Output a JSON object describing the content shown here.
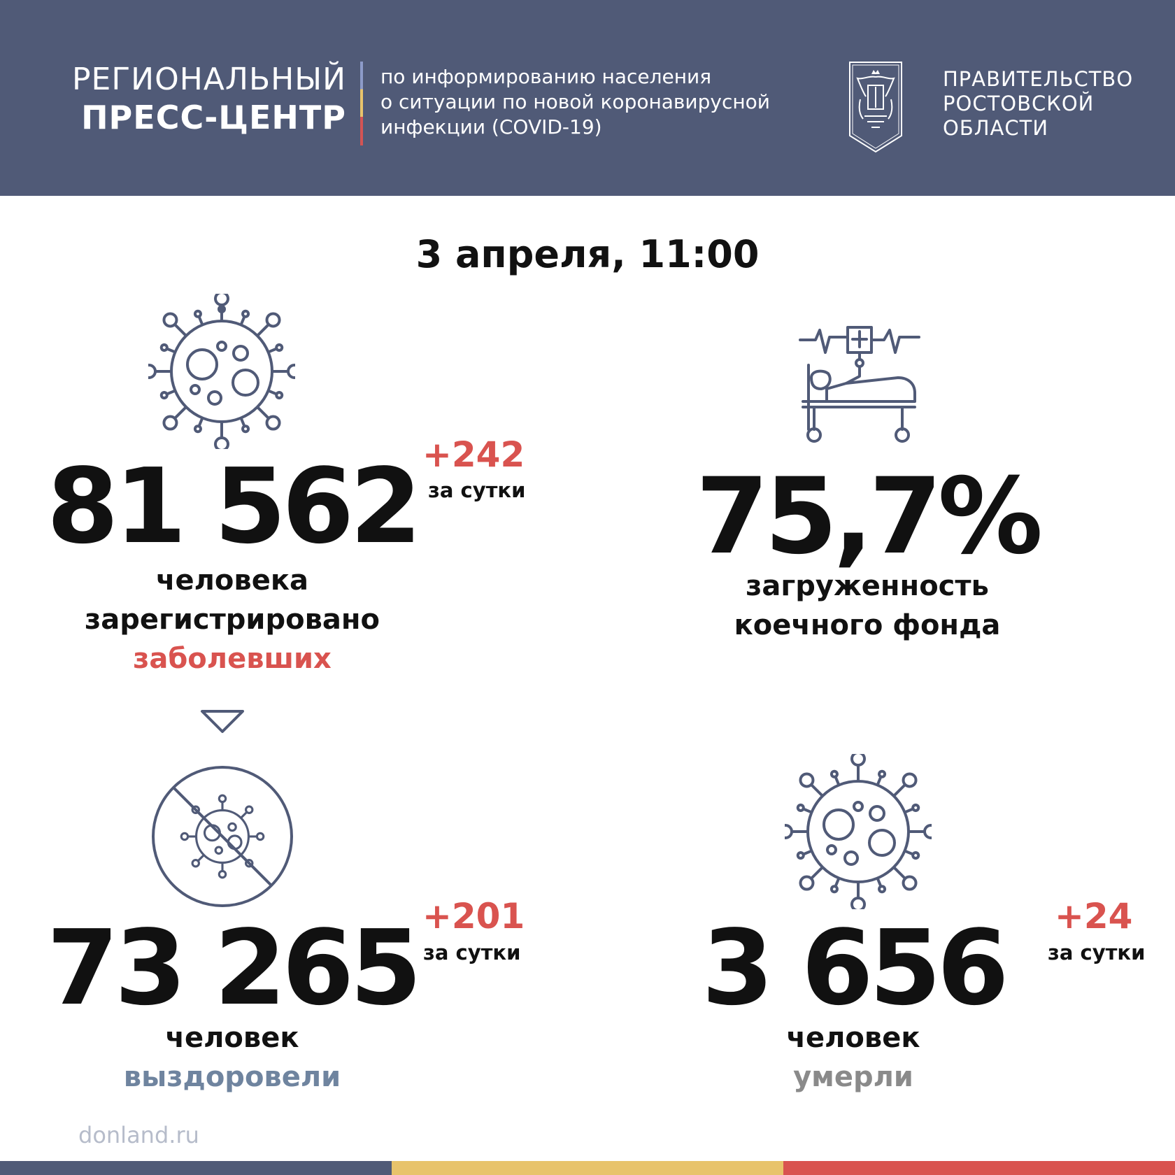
{
  "header": {
    "title_line1": "РЕГИОНАЛЬНЫЙ",
    "title_line2": "ПРЕСС-ЦЕНТР",
    "desc_line1": "по информированию населения",
    "desc_line2": "о ситуации по новой коронавирусной",
    "desc_line3": "инфекции (COVID-19)",
    "gov_line1": "ПРАВИТЕЛЬСТВО",
    "gov_line2": "РОСТОВСКОЙ",
    "gov_line3": "ОБЛАСТИ"
  },
  "date": "3 апреля, 11:00",
  "stats": {
    "cases": {
      "value": "81 562",
      "delta": "+242",
      "per": "за сутки",
      "line1": "человека",
      "line2": "зарегистрировано",
      "line3": "заболевших"
    },
    "beds": {
      "value": "75,7%",
      "line1": "загруженность",
      "line2": "коечного фонда"
    },
    "recovered": {
      "value": "73 265",
      "delta": "+201",
      "per": "за сутки",
      "line1": "человек",
      "line2": "выздоровели"
    },
    "deaths": {
      "value": "3 656",
      "delta": "+24",
      "per": "за сутки",
      "line1": "человек",
      "line2": "умерли"
    }
  },
  "footer": {
    "site": "donland.ru"
  },
  "colors": {
    "header_bg": "#505a77",
    "accent_red": "#d9534f",
    "recovered_blue": "#6f849f",
    "deaths_gray": "#8a8a8a",
    "stripe_navy": "#505a77",
    "stripe_yellow": "#e8c36b",
    "stripe_red": "#d9534f"
  },
  "icons": [
    "virus-icon",
    "hospital-bed-icon",
    "arrow-down-icon",
    "no-virus-icon",
    "virus-icon",
    "coat-of-arms-emblem"
  ]
}
